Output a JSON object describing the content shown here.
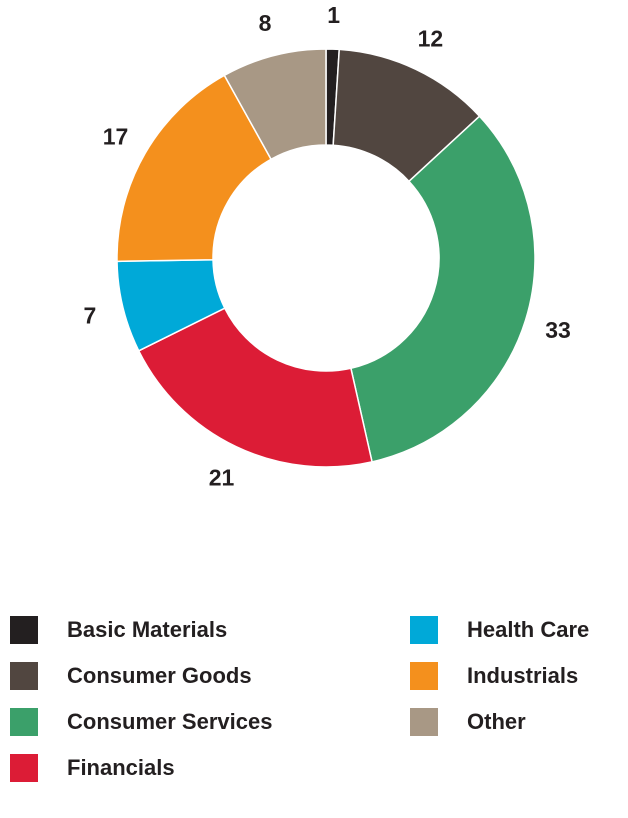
{
  "chart_data": {
    "type": "pie",
    "style": "donut",
    "start": "top",
    "direction": "clockwise",
    "slices": [
      {
        "label": "Basic Materials",
        "value": 1,
        "color": "#231f20"
      },
      {
        "label": "Consumer Goods",
        "value": 12,
        "color": "#514640"
      },
      {
        "label": "Consumer Services",
        "value": 33,
        "color": "#3ba06a"
      },
      {
        "label": "Financials",
        "value": 21,
        "color": "#dc1c36"
      },
      {
        "label": "Health Care",
        "value": 7,
        "color": "#00a9d8"
      },
      {
        "label": "Industrials",
        "value": 17,
        "color": "#f4901d"
      },
      {
        "label": "Other",
        "value": 8,
        "color": "#a89885"
      }
    ],
    "data_labels": [
      "1",
      "12",
      "33",
      "21",
      "7",
      "17",
      "8"
    ],
    "legend": {
      "placement": "bottom",
      "entries": [
        "Basic Materials",
        "Consumer Goods",
        "Consumer Services",
        "Financials",
        "Health Care",
        "Industrials",
        "Other"
      ]
    }
  }
}
